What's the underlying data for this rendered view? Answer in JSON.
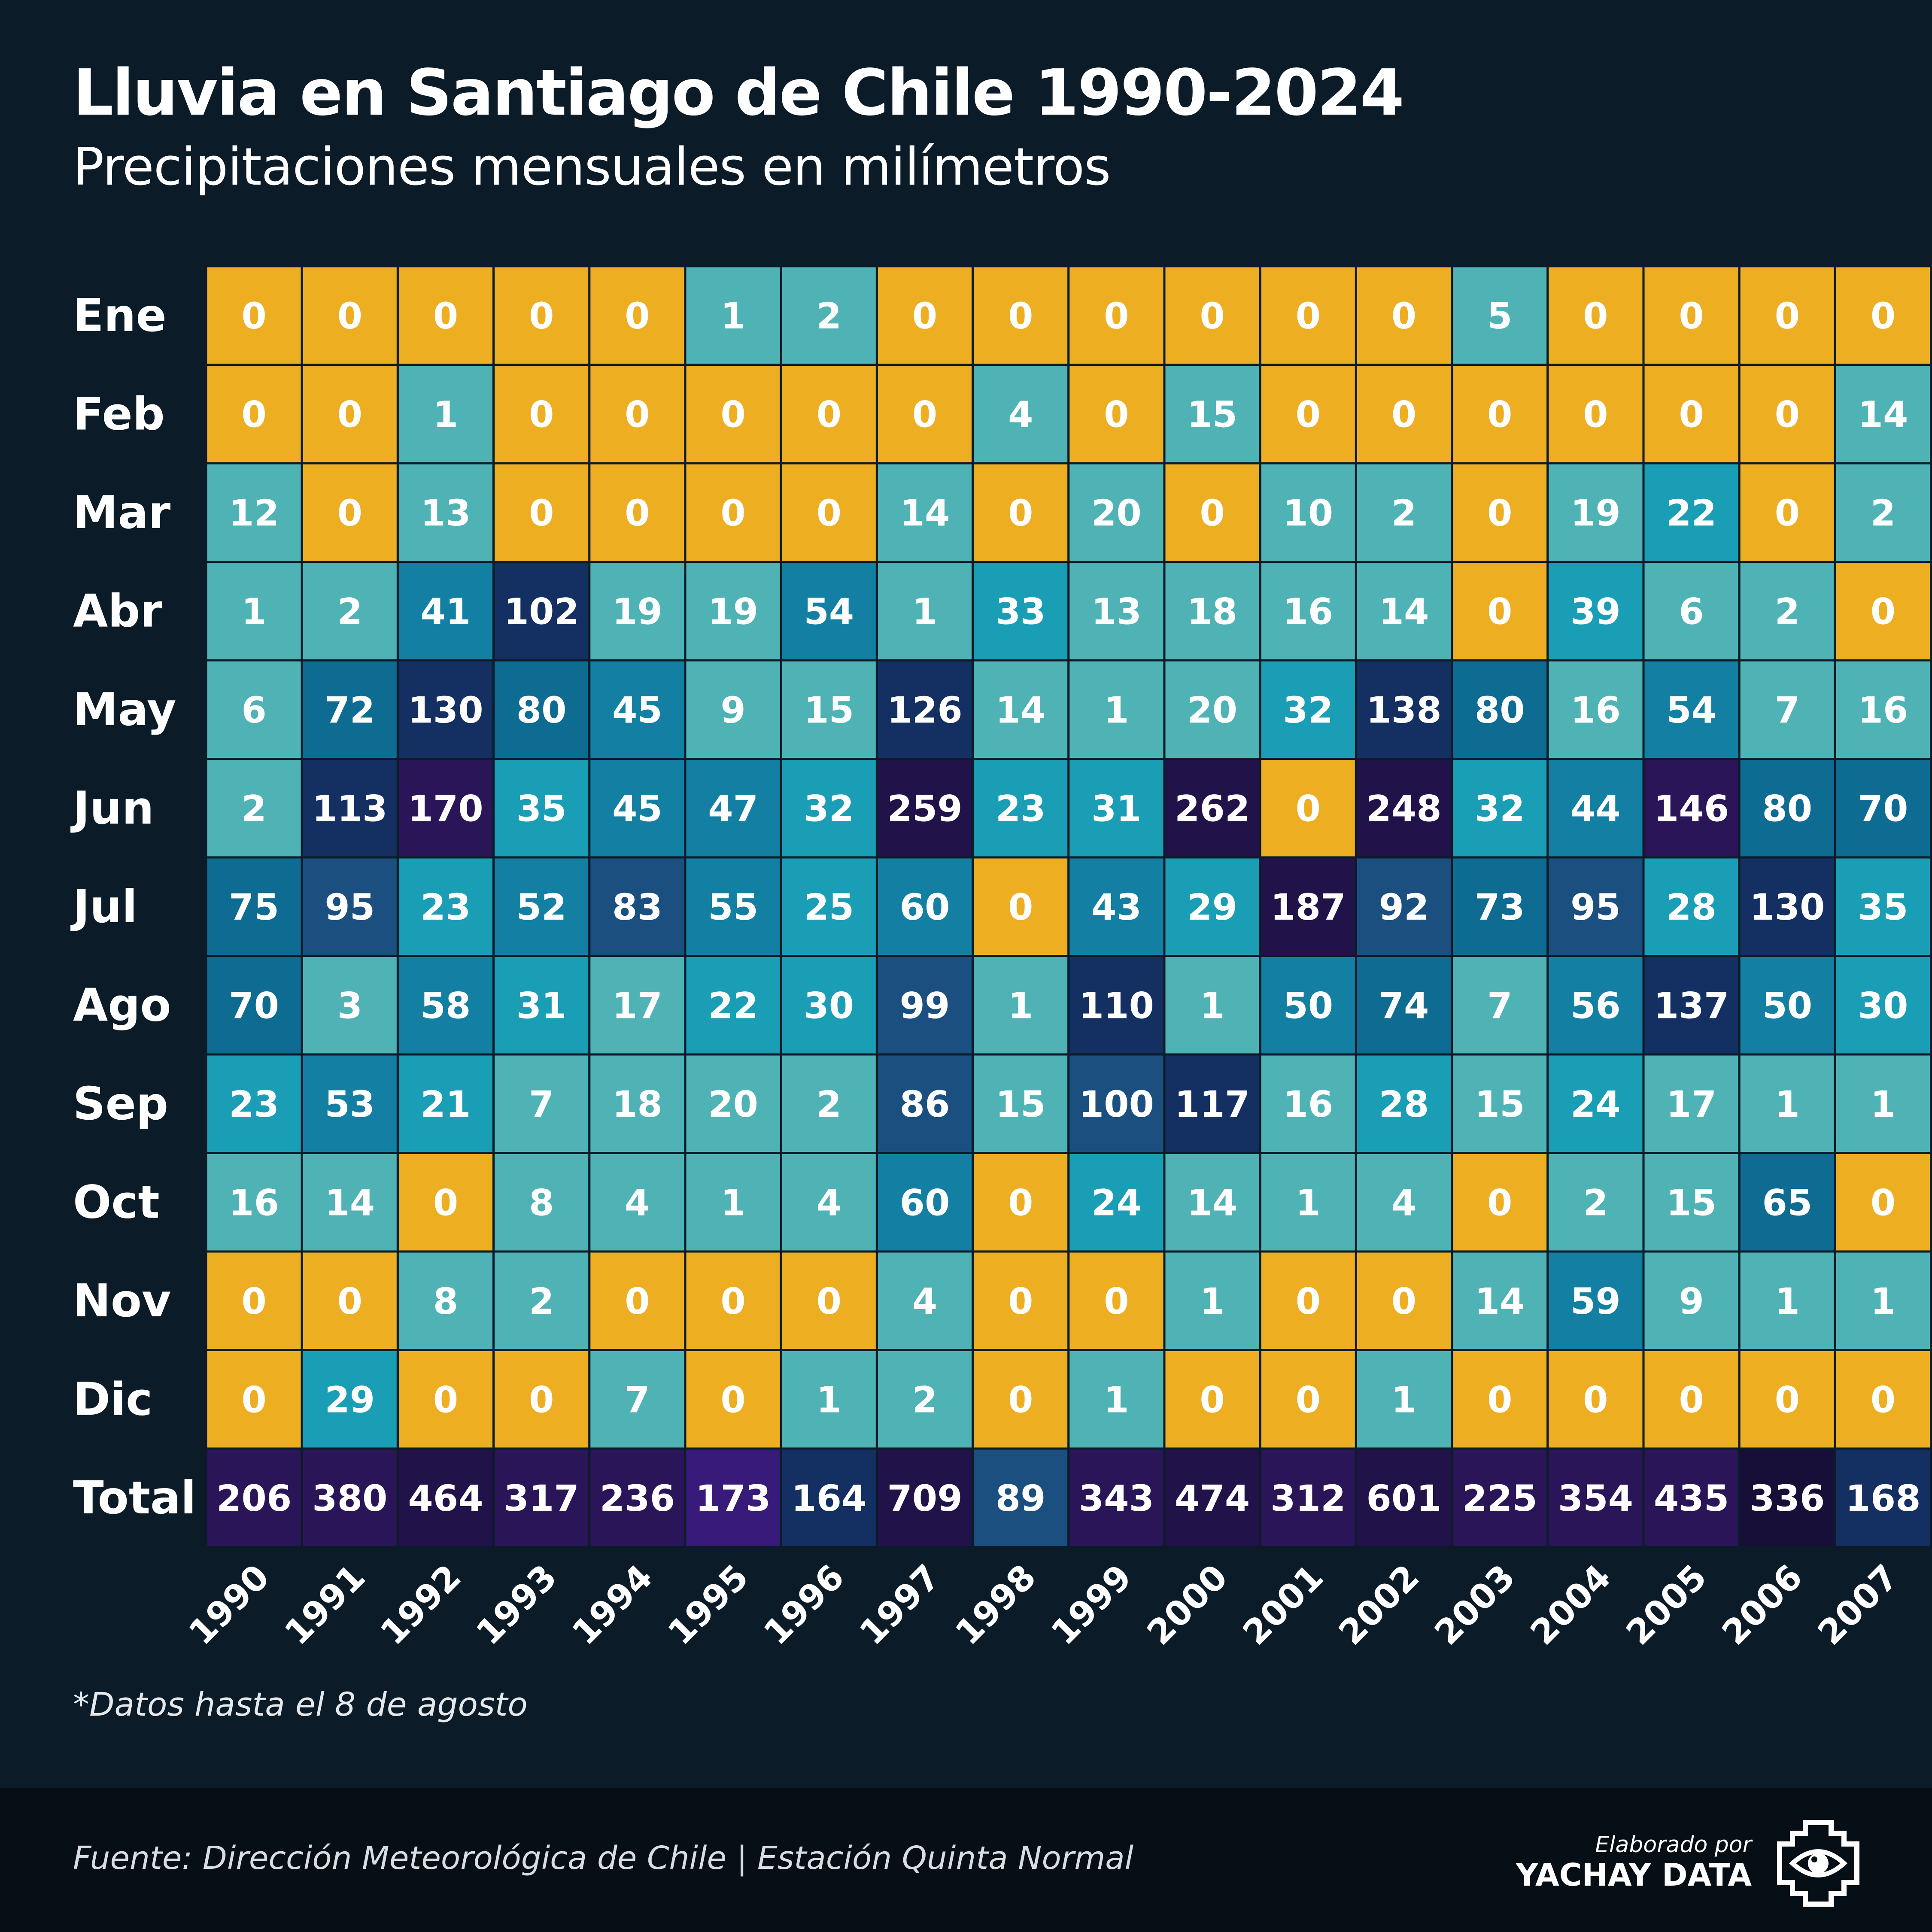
{
  "header": {
    "title": "Lluvia en Santiago de Chile 1990-2024",
    "subtitle": "Precipitaciones mensuales en milímetros"
  },
  "note": "*Datos hasta el 8 de agosto",
  "footer": {
    "source": "Fuente: Dirección Meteorológica de Chile | Estación Quinta Normal",
    "credit_prefix": "Elaborado por",
    "credit_brand": "YACHAY DATA",
    "logo_icon": "eye-icon"
  },
  "colors": {
    "background": "#0b1b28",
    "zero": "#edae22",
    "cell_border": "#0b1b28"
  },
  "chart_data": {
    "type": "heatmap",
    "title": "Lluvia en Santiago de Chile 1990-2024",
    "subtitle": "Precipitaciones mensuales en milímetros",
    "rows": [
      "Ene",
      "Feb",
      "Mar",
      "Abr",
      "May",
      "Jun",
      "Jul",
      "Ago",
      "Sep",
      "Oct",
      "Nov",
      "Dic",
      "Total"
    ],
    "columns": [
      "1990",
      "1991",
      "1992",
      "1993",
      "1994",
      "1995",
      "1996",
      "1997",
      "1998",
      "1999",
      "2000",
      "2001",
      "2002",
      "2003",
      "2004",
      "2005",
      "2006",
      "2007"
    ],
    "values": [
      [
        0,
        0,
        0,
        0,
        0,
        1,
        2,
        0,
        0,
        0,
        0,
        0,
        0,
        5,
        0,
        0,
        0,
        0
      ],
      [
        0,
        0,
        1,
        0,
        0,
        0,
        0,
        0,
        4,
        0,
        15,
        0,
        0,
        0,
        0,
        0,
        0,
        14
      ],
      [
        12,
        0,
        13,
        0,
        0,
        0,
        0,
        14,
        0,
        20,
        0,
        10,
        2,
        0,
        19,
        22,
        0,
        2
      ],
      [
        1,
        2,
        41,
        102,
        19,
        19,
        54,
        1,
        33,
        13,
        18,
        16,
        14,
        0,
        39,
        6,
        2,
        0
      ],
      [
        6,
        72,
        130,
        80,
        45,
        9,
        15,
        126,
        14,
        1,
        20,
        32,
        138,
        80,
        16,
        54,
        7,
        16
      ],
      [
        2,
        113,
        170,
        35,
        45,
        47,
        32,
        259,
        23,
        31,
        262,
        0,
        248,
        32,
        44,
        146,
        80,
        70
      ],
      [
        75,
        95,
        23,
        52,
        83,
        55,
        25,
        60,
        0,
        43,
        29,
        187,
        92,
        73,
        95,
        28,
        130,
        35
      ],
      [
        70,
        3,
        58,
        31,
        17,
        22,
        30,
        99,
        1,
        110,
        1,
        50,
        74,
        7,
        56,
        137,
        50,
        30
      ],
      [
        23,
        53,
        21,
        7,
        18,
        20,
        2,
        86,
        15,
        100,
        117,
        16,
        28,
        15,
        24,
        17,
        1,
        1
      ],
      [
        16,
        14,
        0,
        8,
        4,
        1,
        4,
        60,
        0,
        24,
        14,
        1,
        4,
        0,
        2,
        15,
        65,
        0
      ],
      [
        0,
        0,
        8,
        2,
        0,
        0,
        0,
        4,
        0,
        0,
        1,
        0,
        0,
        14,
        59,
        9,
        1,
        1
      ],
      [
        0,
        29,
        0,
        0,
        7,
        0,
        1,
        2,
        0,
        1,
        0,
        0,
        1,
        0,
        0,
        0,
        0,
        0
      ],
      [
        206,
        380,
        464,
        317,
        236,
        173,
        164,
        709,
        89,
        343,
        474,
        312,
        601,
        225,
        354,
        435,
        336,
        168
      ]
    ],
    "color_scale": [
      {
        "max": 0,
        "color": "#edae22"
      },
      {
        "max": 20,
        "color": "#4fb3b5"
      },
      {
        "max": 40,
        "color": "#1a9eb6"
      },
      {
        "max": 60,
        "color": "#1380a3"
      },
      {
        "max": 80,
        "color": "#0e6b92"
      },
      {
        "max": 100,
        "color": "#1b4f7f"
      },
      {
        "max": 140,
        "color": "#142f62"
      },
      {
        "max": 180,
        "color": "#2a1559"
      },
      {
        "max": 100000,
        "color": "#22124a"
      }
    ],
    "total_colors": [
      "#2a1559",
      "#2a1559",
      "#22124a",
      "#2a1559",
      "#2a1559",
      "#371a7a",
      "#142f62",
      "#22124a",
      "#1b4f7f",
      "#2a1559",
      "#22124a",
      "#2a1559",
      "#22124a",
      "#2a1559",
      "#2a1559",
      "#2a1559",
      "#170f38",
      "#142f62"
    ]
  }
}
